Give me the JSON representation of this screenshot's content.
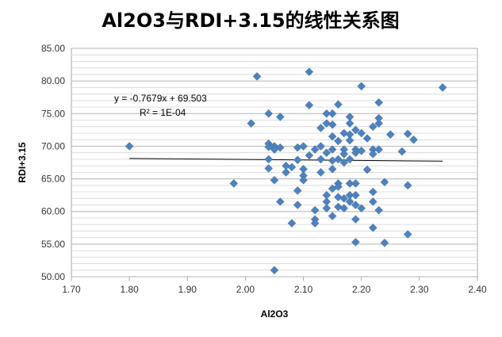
{
  "chart_data": {
    "type": "scatter",
    "title": "Al2O3与RDI+3.15的线性关系图",
    "xlabel": "Al2O3",
    "ylabel": "RDI+3.15",
    "xlim": [
      1.7,
      2.4
    ],
    "ylim": [
      50,
      85
    ],
    "x_ticks": [
      "1.70",
      "1.80",
      "1.90",
      "2.00",
      "2.10",
      "2.20",
      "2.30",
      "2.40"
    ],
    "y_ticks": [
      "50.00",
      "55.00",
      "60.00",
      "65.00",
      "70.00",
      "75.00",
      "80.00",
      "85.00"
    ],
    "grid": "horizontal",
    "legend": "none",
    "marker_color": "#4F81BD",
    "trendline": {
      "slope": -0.7679,
      "intercept": 69.503,
      "x_range": [
        1.8,
        2.34
      ],
      "equation_label": "y = -0.7679x + 69.503",
      "r2_label": "R² = 1E-04",
      "color": "#000000"
    },
    "series": [
      {
        "points": [
          [
            1.8,
            70.0
          ],
          [
            1.98,
            64.3
          ],
          [
            2.01,
            73.5
          ],
          [
            2.02,
            80.7
          ],
          [
            2.04,
            75.0
          ],
          [
            2.04,
            70.4
          ],
          [
            2.04,
            69.9
          ],
          [
            2.04,
            68.0
          ],
          [
            2.04,
            66.6
          ],
          [
            2.05,
            70.0
          ],
          [
            2.05,
            69.5
          ],
          [
            2.05,
            64.8
          ],
          [
            2.05,
            51.0
          ],
          [
            2.06,
            74.5
          ],
          [
            2.06,
            69.8
          ],
          [
            2.06,
            61.5
          ],
          [
            2.07,
            67.0
          ],
          [
            2.07,
            66.0
          ],
          [
            2.08,
            66.8
          ],
          [
            2.08,
            58.2
          ],
          [
            2.09,
            69.8
          ],
          [
            2.09,
            67.9
          ],
          [
            2.09,
            63.2
          ],
          [
            2.09,
            61.0
          ],
          [
            2.1,
            70.0
          ],
          [
            2.1,
            66.5
          ],
          [
            2.1,
            65.5
          ],
          [
            2.1,
            64.8
          ],
          [
            2.11,
            81.4
          ],
          [
            2.11,
            76.3
          ],
          [
            2.11,
            68.6
          ],
          [
            2.12,
            69.5
          ],
          [
            2.12,
            60.2
          ],
          [
            2.12,
            58.8
          ],
          [
            2.12,
            58.2
          ],
          [
            2.13,
            72.8
          ],
          [
            2.13,
            70.0
          ],
          [
            2.13,
            68.0
          ],
          [
            2.13,
            66.0
          ],
          [
            2.14,
            75.0
          ],
          [
            2.14,
            73.5
          ],
          [
            2.14,
            69.0
          ],
          [
            2.14,
            62.5
          ],
          [
            2.14,
            61.5
          ],
          [
            2.14,
            60.5
          ],
          [
            2.15,
            75.0
          ],
          [
            2.15,
            73.3
          ],
          [
            2.15,
            71.5
          ],
          [
            2.15,
            69.5
          ],
          [
            2.15,
            67.8
          ],
          [
            2.15,
            66.5
          ],
          [
            2.15,
            63.5
          ],
          [
            2.15,
            59.3
          ],
          [
            2.16,
            76.4
          ],
          [
            2.16,
            70.8
          ],
          [
            2.16,
            68.0
          ],
          [
            2.16,
            64.3
          ],
          [
            2.16,
            63.8
          ],
          [
            2.16,
            62.2
          ],
          [
            2.16,
            60.7
          ],
          [
            2.17,
            72.0
          ],
          [
            2.17,
            69.5
          ],
          [
            2.17,
            68.8
          ],
          [
            2.17,
            67.5
          ],
          [
            2.17,
            62.0
          ],
          [
            2.17,
            60.5
          ],
          [
            2.18,
            74.5
          ],
          [
            2.18,
            73.5
          ],
          [
            2.18,
            71.8
          ],
          [
            2.18,
            70.9
          ],
          [
            2.18,
            68.0
          ],
          [
            2.18,
            64.3
          ],
          [
            2.18,
            62.5
          ],
          [
            2.18,
            61.5
          ],
          [
            2.19,
            72.5
          ],
          [
            2.19,
            69.5
          ],
          [
            2.19,
            69.0
          ],
          [
            2.19,
            64.3
          ],
          [
            2.19,
            62.5
          ],
          [
            2.19,
            61.0
          ],
          [
            2.19,
            58.8
          ],
          [
            2.19,
            55.3
          ],
          [
            2.2,
            79.2
          ],
          [
            2.2,
            72.0
          ],
          [
            2.2,
            69.3
          ],
          [
            2.2,
            60.5
          ],
          [
            2.21,
            71.2
          ],
          [
            2.21,
            66.4
          ],
          [
            2.22,
            73.0
          ],
          [
            2.22,
            69.5
          ],
          [
            2.22,
            68.8
          ],
          [
            2.22,
            63.0
          ],
          [
            2.22,
            61.5
          ],
          [
            2.22,
            57.5
          ],
          [
            2.23,
            76.7
          ],
          [
            2.23,
            74.3
          ],
          [
            2.23,
            73.5
          ],
          [
            2.23,
            69.5
          ],
          [
            2.23,
            60.2
          ],
          [
            2.24,
            64.5
          ],
          [
            2.24,
            55.2
          ],
          [
            2.25,
            71.8
          ],
          [
            2.27,
            69.2
          ],
          [
            2.28,
            71.9
          ],
          [
            2.28,
            64.0
          ],
          [
            2.28,
            56.5
          ],
          [
            2.29,
            71.0
          ],
          [
            2.34,
            79.0
          ]
        ]
      }
    ]
  }
}
